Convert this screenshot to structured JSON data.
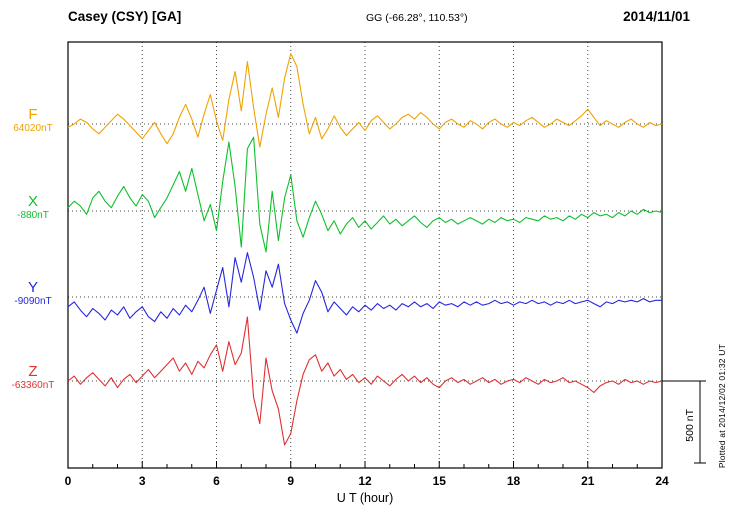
{
  "header": {
    "station": "Casey (CSY)  [GA]",
    "coords": "GG (-66.28°, 110.53°)",
    "date": "2014/11/01"
  },
  "axis": {
    "x_label": "U T (hour)",
    "x_ticks": [
      0,
      3,
      6,
      9,
      12,
      15,
      18,
      21,
      24
    ]
  },
  "scale_bar": {
    "label": "500 nT",
    "length_nT": 500
  },
  "footer": {
    "plotted_note": "Plotted at 2014/12/02 01:32 UT"
  },
  "chart_data": {
    "type": "line",
    "title": "Casey (CSY) [GA] magnetogram 2014/11/01",
    "xlabel": "U T (hour)",
    "x_range": [
      0,
      24
    ],
    "points_per_hour": 4,
    "values_unit": "nT offset from each component baseline",
    "grid": "dotted vertical every 3 h, dotted baseline per component",
    "series": [
      {
        "name": "F",
        "baseline_label": "64020nT",
        "baseline_nT": 64020,
        "color": "#f0a202",
        "values": [
          -20,
          0,
          30,
          10,
          -30,
          -60,
          -20,
          20,
          60,
          30,
          -10,
          -50,
          -90,
          -40,
          10,
          -60,
          -120,
          -60,
          40,
          120,
          30,
          -80,
          60,
          180,
          20,
          -100,
          150,
          320,
          80,
          380,
          100,
          -140,
          60,
          220,
          40,
          280,
          430,
          350,
          120,
          -60,
          40,
          -90,
          -30,
          50,
          -20,
          -70,
          -30,
          10,
          -40,
          20,
          50,
          10,
          -30,
          0,
          40,
          60,
          30,
          70,
          40,
          0,
          -30,
          10,
          30,
          0,
          -20,
          20,
          0,
          -30,
          10,
          30,
          0,
          -20,
          10,
          -10,
          20,
          40,
          10,
          -20,
          0,
          30,
          10,
          -10,
          20,
          50,
          90,
          40,
          -10,
          20,
          0,
          -20,
          10,
          30,
          0,
          -20,
          10,
          -10,
          0
        ]
      },
      {
        "name": "X",
        "baseline_label": "-880nT",
        "baseline_nT": -880,
        "color": "#0fc02c",
        "values": [
          20,
          60,
          30,
          -20,
          80,
          120,
          60,
          20,
          90,
          150,
          80,
          30,
          100,
          60,
          -40,
          20,
          80,
          160,
          240,
          120,
          260,
          100,
          -60,
          40,
          -120,
          180,
          420,
          150,
          -220,
          380,
          450,
          -80,
          -250,
          120,
          -180,
          80,
          220,
          -60,
          -160,
          -40,
          60,
          -20,
          -120,
          -60,
          -140,
          -80,
          -40,
          -100,
          -60,
          -110,
          -70,
          -30,
          -80,
          -50,
          -90,
          -60,
          -30,
          -70,
          -100,
          -60,
          -40,
          -70,
          -50,
          -80,
          -60,
          -40,
          -60,
          -80,
          -50,
          -70,
          -40,
          -60,
          -50,
          -70,
          -40,
          -50,
          -60,
          -30,
          -50,
          -40,
          -60,
          -30,
          -50,
          -20,
          -40,
          -10,
          -30,
          -20,
          -40,
          -10,
          -30,
          0,
          -20,
          10,
          -10,
          0,
          -10
        ]
      },
      {
        "name": "Y",
        "baseline_label": "-9090nT",
        "baseline_nT": -9090,
        "color": "#2626e0",
        "values": [
          -60,
          -30,
          -80,
          -120,
          -70,
          -100,
          -140,
          -80,
          -110,
          -60,
          -130,
          -90,
          -60,
          -120,
          -150,
          -90,
          -130,
          -70,
          -110,
          -50,
          -90,
          -20,
          60,
          -100,
          40,
          180,
          -60,
          240,
          90,
          270,
          120,
          -80,
          160,
          60,
          200,
          -40,
          -140,
          -220,
          -100,
          -20,
          100,
          30,
          -90,
          -30,
          -70,
          -110,
          -60,
          -90,
          -50,
          -80,
          -40,
          -70,
          -50,
          -80,
          -40,
          -60,
          -30,
          -60,
          -40,
          -70,
          -30,
          -50,
          -40,
          -60,
          -30,
          -50,
          -30,
          -50,
          -40,
          -20,
          -40,
          -30,
          -50,
          -30,
          -40,
          -20,
          -40,
          -30,
          -50,
          -30,
          -40,
          -20,
          -40,
          -30,
          -20,
          -40,
          -60,
          -30,
          -40,
          -20,
          -30,
          -20,
          -30,
          -10,
          -30,
          -20,
          -20
        ]
      },
      {
        "name": "Z",
        "baseline_label": "-63360nT",
        "baseline_nT": -63360,
        "color": "#e03030",
        "values": [
          0,
          30,
          -20,
          20,
          50,
          10,
          -30,
          20,
          -40,
          10,
          40,
          -10,
          30,
          70,
          20,
          60,
          100,
          140,
          60,
          110,
          40,
          120,
          80,
          160,
          220,
          60,
          240,
          100,
          170,
          390,
          -100,
          -260,
          140,
          -60,
          -170,
          -390,
          -320,
          -120,
          40,
          130,
          160,
          60,
          110,
          30,
          70,
          10,
          40,
          -10,
          20,
          -20,
          30,
          0,
          -30,
          10,
          40,
          0,
          30,
          -10,
          20,
          -20,
          -40,
          0,
          20,
          -10,
          10,
          -20,
          0,
          20,
          -10,
          10,
          -20,
          0,
          10,
          -10,
          20,
          0,
          -20,
          10,
          -10,
          0,
          20,
          -10,
          0,
          -20,
          -40,
          -70,
          -30,
          -10,
          0,
          -20,
          10,
          -10,
          0,
          -20,
          0,
          -10,
          0
        ]
      }
    ]
  }
}
